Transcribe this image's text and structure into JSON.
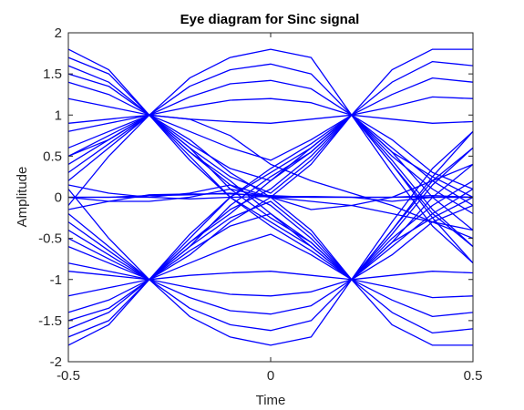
{
  "chart_data": {
    "type": "line",
    "title": "Eye diagram for Sinc signal",
    "xlabel": "Time",
    "ylabel": "Amplitude",
    "xlim": [
      -0.5,
      0.5
    ],
    "ylim": [
      -2,
      2
    ],
    "x_ticks": [
      -0.5,
      0,
      0.5
    ],
    "x_tick_labels": [
      "-0.5",
      "0",
      "0.5"
    ],
    "y_ticks": [
      -2,
      -1.5,
      -1,
      -0.5,
      0,
      0.5,
      1,
      1.5,
      2
    ],
    "y_tick_labels": [
      "-2",
      "-1.5",
      "-1",
      "-0.5",
      "0",
      "0.5",
      "1",
      "1.5",
      "2"
    ],
    "grid": false,
    "legend": "none",
    "line_color": "#0000ff",
    "x": [
      -0.5,
      -0.4,
      -0.3,
      -0.2,
      -0.1,
      0,
      0.1,
      0.2,
      0.3,
      0.4,
      0.5
    ],
    "series": [
      {
        "values": [
          1.8,
          1.55,
          1.0,
          1.45,
          1.7,
          1.8,
          1.7,
          1.0,
          1.55,
          1.8,
          1.8
        ]
      },
      {
        "values": [
          1.6,
          1.4,
          1.0,
          1.35,
          1.55,
          1.62,
          1.5,
          1.0,
          1.4,
          1.65,
          1.6
        ]
      },
      {
        "values": [
          1.4,
          1.25,
          1.0,
          1.22,
          1.38,
          1.42,
          1.32,
          1.0,
          1.25,
          1.45,
          1.4
        ]
      },
      {
        "values": [
          1.2,
          1.1,
          1.0,
          1.1,
          1.18,
          1.2,
          1.15,
          1.0,
          1.1,
          1.22,
          1.2
        ]
      },
      {
        "values": [
          0.9,
          0.95,
          1.0,
          0.95,
          0.92,
          0.9,
          0.95,
          1.0,
          0.95,
          0.9,
          0.92
        ]
      },
      {
        "values": [
          0.6,
          0.8,
          1.0,
          0.7,
          0.3,
          0.0,
          -0.4,
          -1.0,
          -0.5,
          -0.1,
          0.2
        ]
      },
      {
        "values": [
          0.4,
          0.7,
          1.0,
          0.6,
          0.1,
          -0.25,
          -0.55,
          -1.0,
          -0.6,
          -0.2,
          0.1
        ]
      },
      {
        "values": [
          0.2,
          0.6,
          1.0,
          0.5,
          0.0,
          -0.35,
          -0.65,
          -1.0,
          -0.7,
          -0.3,
          -0.1
        ]
      },
      {
        "values": [
          -0.1,
          0.5,
          1.0,
          0.55,
          0.2,
          -0.2,
          -0.6,
          -1.0,
          -0.55,
          -0.25,
          0.0
        ]
      },
      {
        "values": [
          1.7,
          1.5,
          1.0,
          0.55,
          0.15,
          -0.1,
          -0.5,
          -1.0,
          -0.4,
          0.2,
          0.6
        ]
      },
      {
        "values": [
          1.5,
          1.35,
          1.0,
          0.45,
          0.0,
          -0.3,
          -0.6,
          -1.0,
          -0.3,
          0.35,
          0.8
        ]
      },
      {
        "values": [
          0.8,
          0.9,
          1.0,
          0.8,
          0.6,
          0.45,
          0.7,
          1.0,
          0.55,
          0.0,
          -0.4
        ]
      },
      {
        "values": [
          0.5,
          0.75,
          1.0,
          0.65,
          0.35,
          0.2,
          0.55,
          1.0,
          0.45,
          -0.15,
          -0.6
        ]
      },
      {
        "values": [
          0.3,
          0.65,
          1.0,
          0.6,
          0.25,
          0.05,
          0.45,
          1.0,
          0.4,
          -0.25,
          -0.8
        ]
      },
      {
        "values": [
          -1.8,
          -1.55,
          -1.0,
          -1.45,
          -1.7,
          -1.8,
          -1.7,
          -1.0,
          -1.55,
          -1.8,
          -1.8
        ]
      },
      {
        "values": [
          -1.6,
          -1.4,
          -1.0,
          -1.35,
          -1.55,
          -1.62,
          -1.5,
          -1.0,
          -1.4,
          -1.65,
          -1.6
        ]
      },
      {
        "values": [
          -1.4,
          -1.25,
          -1.0,
          -1.22,
          -1.38,
          -1.42,
          -1.32,
          -1.0,
          -1.25,
          -1.45,
          -1.4
        ]
      },
      {
        "values": [
          -1.2,
          -1.1,
          -1.0,
          -1.1,
          -1.18,
          -1.2,
          -1.15,
          -1.0,
          -1.1,
          -1.22,
          -1.2
        ]
      },
      {
        "values": [
          -0.9,
          -0.95,
          -1.0,
          -0.95,
          -0.92,
          -0.9,
          -0.95,
          -1.0,
          -0.95,
          -0.9,
          -0.92
        ]
      },
      {
        "values": [
          -0.6,
          -0.8,
          -1.0,
          -0.7,
          -0.3,
          0.0,
          0.4,
          1.0,
          0.5,
          0.1,
          -0.2
        ]
      },
      {
        "values": [
          -0.4,
          -0.7,
          -1.0,
          -0.6,
          -0.1,
          0.25,
          0.55,
          1.0,
          0.6,
          0.2,
          -0.1
        ]
      },
      {
        "values": [
          -0.2,
          -0.6,
          -1.0,
          -0.5,
          0.0,
          0.35,
          0.65,
          1.0,
          0.7,
          0.3,
          0.1
        ]
      },
      {
        "values": [
          0.1,
          -0.5,
          -1.0,
          -0.55,
          -0.2,
          0.2,
          0.6,
          1.0,
          0.55,
          0.25,
          0.0
        ]
      },
      {
        "values": [
          -1.7,
          -1.5,
          -1.0,
          -0.55,
          -0.15,
          0.1,
          0.5,
          1.0,
          0.4,
          -0.2,
          -0.6
        ]
      },
      {
        "values": [
          -1.5,
          -1.35,
          -1.0,
          -0.45,
          0.0,
          0.3,
          0.6,
          1.0,
          0.3,
          -0.35,
          -0.8
        ]
      },
      {
        "values": [
          -0.8,
          -0.9,
          -1.0,
          -0.8,
          -0.6,
          -0.45,
          -0.7,
          -1.0,
          -0.55,
          0.0,
          0.4
        ]
      },
      {
        "values": [
          -0.5,
          -0.75,
          -1.0,
          -0.65,
          -0.35,
          -0.2,
          -0.55,
          -1.0,
          -0.45,
          0.15,
          0.6
        ]
      },
      {
        "values": [
          -0.3,
          -0.65,
          -1.0,
          -0.6,
          -0.25,
          -0.05,
          -0.45,
          -1.0,
          -0.4,
          0.25,
          0.8
        ]
      },
      {
        "values": [
          0.0,
          0.0,
          0.02,
          0.03,
          0.05,
          0.0,
          0.0,
          0.0,
          0.0,
          0.0,
          0.0
        ]
      },
      {
        "values": [
          -0.15,
          -0.05,
          0.03,
          0.04,
          0.04,
          0.02,
          0.0,
          0.0,
          -0.05,
          0.0,
          0.0
        ]
      },
      {
        "values": [
          0.15,
          0.05,
          0.0,
          -0.02,
          0.0,
          0.01,
          0.01,
          0.0,
          0.0,
          0.02,
          0.0
        ]
      },
      {
        "values": [
          0.0,
          0.0,
          0.0,
          0.05,
          0.15,
          0.0,
          -0.05,
          -0.1,
          -0.2,
          -0.3,
          -0.4
        ]
      },
      {
        "values": [
          0.0,
          -0.05,
          -0.05,
          0.0,
          0.1,
          0.0,
          -0.15,
          -0.1,
          0.0,
          0.2,
          0.4
        ]
      },
      {
        "values": [
          0.5,
          0.7,
          1.0,
          0.95,
          0.75,
          0.4,
          0.2,
          0.05,
          -0.1,
          -0.3,
          -0.5
        ]
      }
    ]
  }
}
